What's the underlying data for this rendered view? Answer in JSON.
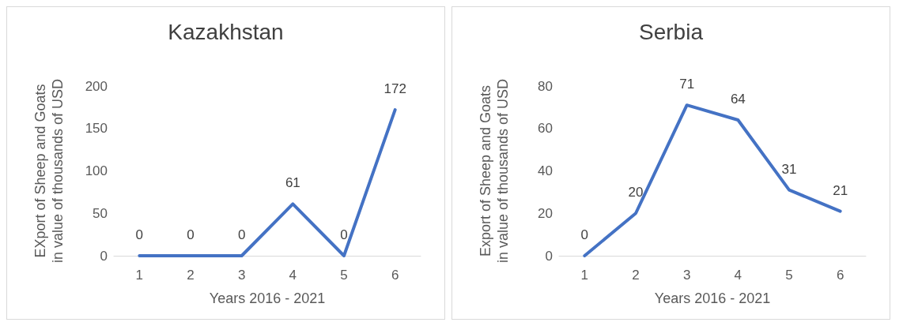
{
  "chart_data": [
    {
      "type": "line",
      "title": "Kazakhstan",
      "xlabel": "Years 2016 - 2021",
      "ylabel": "EXport of Sheep and Goats in value of thousands of USD",
      "categories": [
        "1",
        "2",
        "3",
        "4",
        "5",
        "6"
      ],
      "series": [
        {
          "color": "#4472c4",
          "values": [
            0,
            0,
            0,
            61,
            0,
            172
          ]
        }
      ],
      "ylim": [
        0,
        200
      ],
      "yticks": [
        0,
        50,
        100,
        150,
        200
      ],
      "data_labels": true,
      "grid": false,
      "marker": "none"
    },
    {
      "type": "line",
      "title": "Serbia",
      "xlabel": "Years 2016 - 2021",
      "ylabel": "Export of Sheep and Goats in value of thousands of USD",
      "categories": [
        "1",
        "2",
        "3",
        "4",
        "5",
        "6"
      ],
      "series": [
        {
          "color": "#4472c4",
          "values": [
            0,
            20,
            71,
            64,
            31,
            21
          ]
        }
      ],
      "ylim": [
        0,
        80
      ],
      "yticks": [
        0,
        20,
        40,
        60,
        80
      ],
      "data_labels": true,
      "grid": false,
      "marker": "none"
    }
  ]
}
